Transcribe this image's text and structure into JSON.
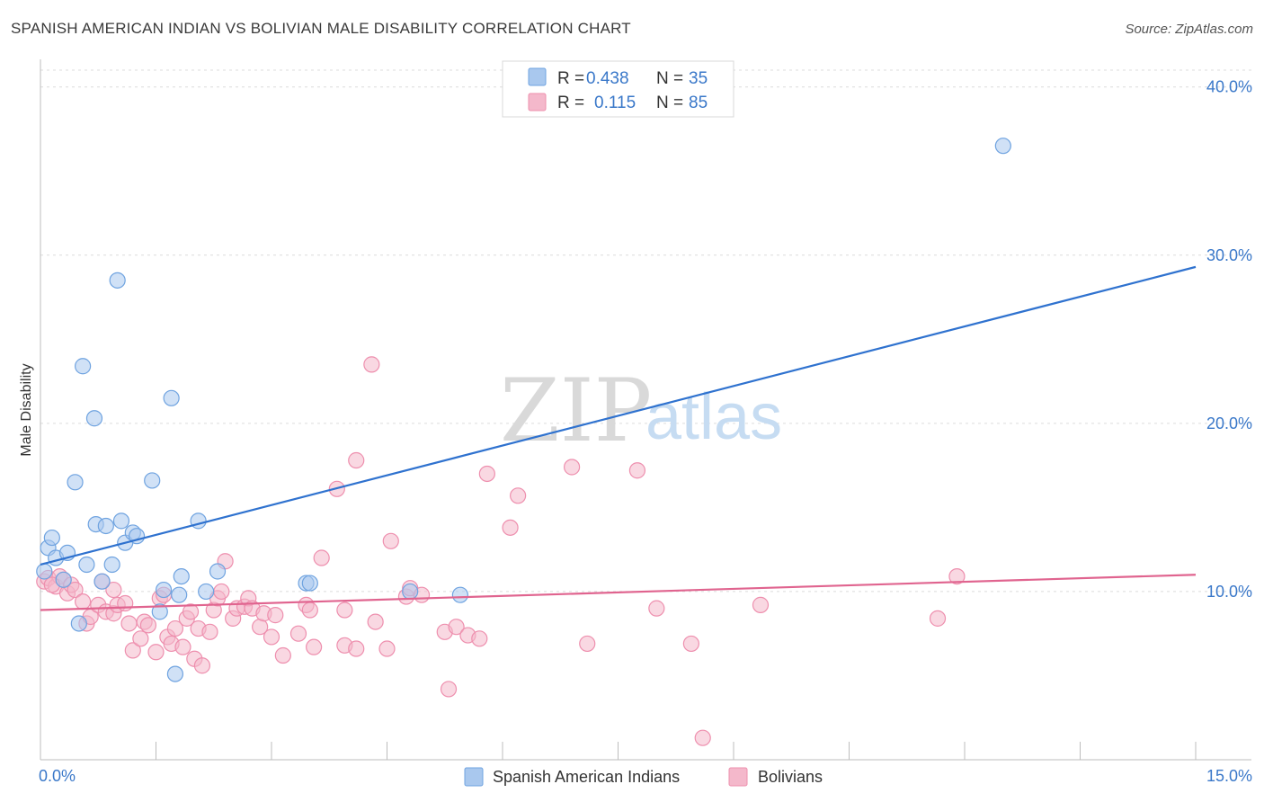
{
  "header": {
    "title": "SPANISH AMERICAN INDIAN VS BOLIVIAN MALE DISABILITY CORRELATION CHART",
    "source": "Source: ZipAtlas.com"
  },
  "watermark": {
    "zip": "ZIP",
    "atlas": "atlas"
  },
  "legend": {
    "rows": [
      {
        "r_label": "R =",
        "r_value": "0.438",
        "n_label": "N =",
        "n_value": "35",
        "color": "#a9c8ee"
      },
      {
        "r_label": "R =",
        "r_value": "0.115",
        "n_label": "N =",
        "n_value": "85",
        "color": "#f4b8cb"
      }
    ]
  },
  "bottom_legend": {
    "items": [
      {
        "label": "Spanish American Indians",
        "color": "#a9c8ee"
      },
      {
        "label": "Bolivians",
        "color": "#f4b8cb"
      }
    ]
  },
  "chart_data": {
    "type": "scatter",
    "title": "SPANISH AMERICAN INDIAN VS BOLIVIAN MALE DISABILITY CORRELATION CHART",
    "xlabel": "",
    "ylabel": "Male Disability",
    "xlim": [
      0,
      15
    ],
    "ylim": [
      0,
      41
    ],
    "x_tick_labels": [
      "0.0%",
      "15.0%"
    ],
    "y_ticks": [
      10,
      20,
      30,
      40
    ],
    "y_tick_labels": [
      "10.0%",
      "20.0%",
      "30.0%",
      "40.0%"
    ],
    "grid": true,
    "series": [
      {
        "name": "Spanish American Indians",
        "color": "#6fa3e0",
        "fill": "#a9c8ee",
        "line_color": "#2f72cf",
        "trend": {
          "x": [
            0,
            15
          ],
          "y": [
            11.6,
            29.3
          ]
        },
        "points": [
          {
            "x": 0.1,
            "y": 12.6
          },
          {
            "x": 0.15,
            "y": 13.2
          },
          {
            "x": 0.2,
            "y": 12.0
          },
          {
            "x": 0.35,
            "y": 12.3
          },
          {
            "x": 0.3,
            "y": 10.7
          },
          {
            "x": 0.45,
            "y": 16.5
          },
          {
            "x": 0.55,
            "y": 23.4
          },
          {
            "x": 0.6,
            "y": 11.6
          },
          {
            "x": 0.7,
            "y": 20.3
          },
          {
            "x": 0.72,
            "y": 14.0
          },
          {
            "x": 0.85,
            "y": 13.9
          },
          {
            "x": 0.93,
            "y": 11.6
          },
          {
            "x": 1.0,
            "y": 28.5
          },
          {
            "x": 1.05,
            "y": 14.2
          },
          {
            "x": 1.1,
            "y": 12.9
          },
          {
            "x": 1.2,
            "y": 13.5
          },
          {
            "x": 1.25,
            "y": 13.3
          },
          {
            "x": 1.45,
            "y": 16.6
          },
          {
            "x": 1.55,
            "y": 8.8
          },
          {
            "x": 1.6,
            "y": 10.1
          },
          {
            "x": 1.7,
            "y": 21.5
          },
          {
            "x": 1.8,
            "y": 9.8
          },
          {
            "x": 1.83,
            "y": 10.9
          },
          {
            "x": 2.05,
            "y": 14.2
          },
          {
            "x": 2.15,
            "y": 10.0
          },
          {
            "x": 2.3,
            "y": 11.2
          },
          {
            "x": 3.45,
            "y": 10.5
          },
          {
            "x": 3.5,
            "y": 10.5
          },
          {
            "x": 4.8,
            "y": 10.0
          },
          {
            "x": 5.45,
            "y": 9.8
          },
          {
            "x": 12.5,
            "y": 36.5
          },
          {
            "x": 1.75,
            "y": 5.1
          },
          {
            "x": 0.5,
            "y": 8.1
          },
          {
            "x": 0.05,
            "y": 11.2
          },
          {
            "x": 0.8,
            "y": 10.6
          }
        ]
      },
      {
        "name": "Bolivians",
        "color": "#ee8fae",
        "fill": "#f4b8cb",
        "line_color": "#e0648f",
        "trend": {
          "x": [
            0,
            15
          ],
          "y": [
            8.9,
            11.0
          ]
        },
        "points": [
          {
            "x": 0.05,
            "y": 10.6
          },
          {
            "x": 0.1,
            "y": 10.8
          },
          {
            "x": 0.2,
            "y": 10.3
          },
          {
            "x": 0.25,
            "y": 10.9
          },
          {
            "x": 0.3,
            "y": 10.7
          },
          {
            "x": 0.35,
            "y": 9.9
          },
          {
            "x": 0.4,
            "y": 10.4
          },
          {
            "x": 0.45,
            "y": 10.1
          },
          {
            "x": 0.55,
            "y": 9.4
          },
          {
            "x": 0.6,
            "y": 8.1
          },
          {
            "x": 0.65,
            "y": 8.5
          },
          {
            "x": 0.75,
            "y": 9.2
          },
          {
            "x": 0.8,
            "y": 10.6
          },
          {
            "x": 0.85,
            "y": 8.8
          },
          {
            "x": 0.95,
            "y": 8.7
          },
          {
            "x": 0.95,
            "y": 10.1
          },
          {
            "x": 1.0,
            "y": 9.2
          },
          {
            "x": 1.1,
            "y": 9.3
          },
          {
            "x": 1.15,
            "y": 8.1
          },
          {
            "x": 1.2,
            "y": 6.5
          },
          {
            "x": 1.3,
            "y": 7.2
          },
          {
            "x": 1.35,
            "y": 8.2
          },
          {
            "x": 1.4,
            "y": 8.0
          },
          {
            "x": 1.5,
            "y": 6.4
          },
          {
            "x": 1.55,
            "y": 9.6
          },
          {
            "x": 1.6,
            "y": 9.8
          },
          {
            "x": 1.65,
            "y": 7.3
          },
          {
            "x": 1.7,
            "y": 6.9
          },
          {
            "x": 1.75,
            "y": 7.8
          },
          {
            "x": 1.85,
            "y": 6.7
          },
          {
            "x": 1.9,
            "y": 8.4
          },
          {
            "x": 1.95,
            "y": 8.8
          },
          {
            "x": 2.0,
            "y": 6.0
          },
          {
            "x": 2.05,
            "y": 7.8
          },
          {
            "x": 2.1,
            "y": 5.6
          },
          {
            "x": 2.2,
            "y": 7.6
          },
          {
            "x": 2.25,
            "y": 8.9
          },
          {
            "x": 2.3,
            "y": 9.6
          },
          {
            "x": 2.35,
            "y": 10.0
          },
          {
            "x": 2.4,
            "y": 11.8
          },
          {
            "x": 2.5,
            "y": 8.4
          },
          {
            "x": 2.55,
            "y": 9.0
          },
          {
            "x": 2.65,
            "y": 9.1
          },
          {
            "x": 2.7,
            "y": 9.6
          },
          {
            "x": 2.75,
            "y": 9.0
          },
          {
            "x": 2.85,
            "y": 7.9
          },
          {
            "x": 2.9,
            "y": 8.7
          },
          {
            "x": 3.0,
            "y": 7.3
          },
          {
            "x": 3.05,
            "y": 8.6
          },
          {
            "x": 3.15,
            "y": 6.2
          },
          {
            "x": 3.35,
            "y": 7.5
          },
          {
            "x": 3.45,
            "y": 9.2
          },
          {
            "x": 3.5,
            "y": 8.9
          },
          {
            "x": 3.55,
            "y": 6.7
          },
          {
            "x": 3.65,
            "y": 12.0
          },
          {
            "x": 3.85,
            "y": 16.1
          },
          {
            "x": 3.95,
            "y": 8.9
          },
          {
            "x": 3.95,
            "y": 6.8
          },
          {
            "x": 4.1,
            "y": 17.8
          },
          {
            "x": 4.1,
            "y": 6.6
          },
          {
            "x": 4.3,
            "y": 23.5
          },
          {
            "x": 4.35,
            "y": 8.2
          },
          {
            "x": 4.55,
            "y": 13.0
          },
          {
            "x": 4.5,
            "y": 6.6
          },
          {
            "x": 4.75,
            "y": 9.7
          },
          {
            "x": 4.8,
            "y": 10.2
          },
          {
            "x": 4.95,
            "y": 9.8
          },
          {
            "x": 5.25,
            "y": 7.6
          },
          {
            "x": 5.3,
            "y": 4.2
          },
          {
            "x": 5.4,
            "y": 7.9
          },
          {
            "x": 5.55,
            "y": 7.4
          },
          {
            "x": 5.7,
            "y": 7.2
          },
          {
            "x": 5.8,
            "y": 17.0
          },
          {
            "x": 6.1,
            "y": 13.8
          },
          {
            "x": 6.2,
            "y": 15.7
          },
          {
            "x": 6.9,
            "y": 17.4
          },
          {
            "x": 7.1,
            "y": 6.9
          },
          {
            "x": 7.75,
            "y": 17.2
          },
          {
            "x": 8.0,
            "y": 9.0
          },
          {
            "x": 8.45,
            "y": 6.9
          },
          {
            "x": 8.6,
            "y": 1.3
          },
          {
            "x": 9.35,
            "y": 9.2
          },
          {
            "x": 11.65,
            "y": 8.4
          },
          {
            "x": 11.9,
            "y": 10.9
          },
          {
            "x": 0.15,
            "y": 10.4
          }
        ]
      }
    ]
  }
}
